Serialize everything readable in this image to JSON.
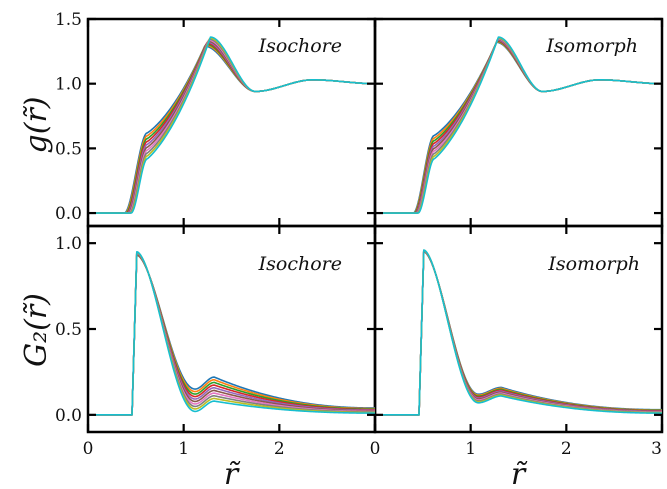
{
  "chart_data": [
    {
      "type": "line",
      "panel": "top-left",
      "annotation": "Isochore",
      "ylabel": "g(r̃)",
      "xlim": [
        0,
        3
      ],
      "ylim": [
        -0.1,
        1.5
      ],
      "yticks": [
        "0.0",
        "0.5",
        "1.0",
        "1.5"
      ],
      "xticks": [],
      "series_count": 10,
      "curve_shape": {
        "onset_x": [
          0.38,
          0.45
        ],
        "peak_x": [
          1.22,
          1.28
        ],
        "peak_y": [
          1.29,
          1.36
        ],
        "shoulder_x": 0.62,
        "shoulder_y": [
          0.42,
          0.62
        ],
        "min_x": 1.75,
        "min_y": 0.94,
        "second_peak_x": 2.35,
        "second_peak_y": 1.03,
        "end_y": 1.0
      }
    },
    {
      "type": "line",
      "panel": "top-right",
      "annotation": "Isomorph",
      "xlim": [
        0,
        3
      ],
      "ylim": [
        -0.1,
        1.5
      ],
      "yticks": [],
      "xticks": [],
      "series_count": 10,
      "curve_shape": {
        "onset_x": [
          0.4,
          0.45
        ],
        "peak_x": [
          1.27,
          1.29
        ],
        "peak_y": [
          1.32,
          1.36
        ],
        "shoulder_x": 0.62,
        "shoulder_y": [
          0.42,
          0.6
        ],
        "min_x": 1.75,
        "min_y": 0.94,
        "second_peak_x": 2.35,
        "second_peak_y": 1.03,
        "end_y": 1.0
      }
    },
    {
      "type": "line",
      "panel": "bottom-left",
      "annotation": "Isochore",
      "ylabel": "G₂(r̃)",
      "xlabel": "r̃",
      "xlim": [
        0,
        3
      ],
      "ylim": [
        -0.1,
        1.1
      ],
      "yticks": [
        "0.0",
        "0.5",
        "1.0"
      ],
      "xticks": [
        "0",
        "1",
        "2"
      ],
      "series_count": 10,
      "curve_shape": {
        "jump_x": 0.46,
        "peak_y": [
          0.93,
          0.95
        ],
        "valley_x": 1.12,
        "valley_y": [
          0.02,
          0.15
        ],
        "bump_x": 1.32,
        "bump_y": [
          0.08,
          0.22
        ],
        "tail_end_y": [
          0.01,
          0.04
        ]
      }
    },
    {
      "type": "line",
      "panel": "bottom-right",
      "annotation": "Isomorph",
      "xlabel": "r̃",
      "xlim": [
        0,
        3
      ],
      "ylim": [
        -0.1,
        1.1
      ],
      "yticks": [],
      "xticks": [
        "0",
        "1",
        "2",
        "3"
      ],
      "series_count": 10,
      "curve_shape": {
        "jump_x": 0.46,
        "peak_y": [
          0.95,
          0.96
        ],
        "valley_x": 1.08,
        "valley_y": [
          0.07,
          0.12
        ],
        "bump_x": 1.32,
        "bump_y": [
          0.11,
          0.16
        ],
        "tail_end_y": [
          0.01,
          0.03
        ]
      }
    }
  ],
  "series_colors": [
    "#1f77b4",
    "#ff7f0e",
    "#2ca02c",
    "#d62728",
    "#9467bd",
    "#8c564b",
    "#e377c2",
    "#7f7f7f",
    "#bcbd22",
    "#17becf"
  ]
}
